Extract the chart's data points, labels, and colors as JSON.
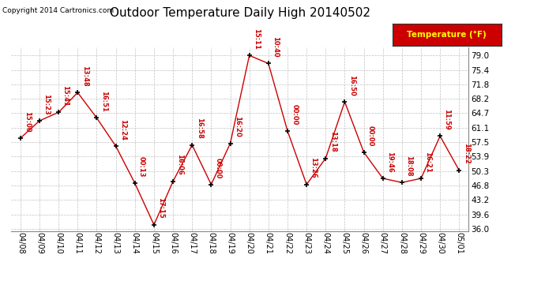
{
  "title": "Outdoor Temperature Daily High 20140502",
  "copyright": "Copyright 2014 Cartronics.com",
  "legend_label": "Temperature (°F)",
  "x_labels": [
    "04/08",
    "04/09",
    "04/10",
    "04/11",
    "04/12",
    "04/13",
    "04/14",
    "04/15",
    "04/16",
    "04/17",
    "04/18",
    "04/19",
    "04/20",
    "04/21",
    "04/22",
    "04/23",
    "04/24",
    "04/25",
    "04/26",
    "04/27",
    "04/28",
    "04/29",
    "04/30",
    "05/01"
  ],
  "y_values": [
    58.5,
    62.8,
    64.9,
    69.8,
    63.5,
    56.5,
    47.3,
    37.0,
    47.8,
    56.8,
    47.0,
    57.2,
    79.0,
    77.0,
    60.3,
    47.0,
    53.5,
    67.5,
    55.0,
    48.5,
    47.5,
    48.5,
    59.0,
    50.5
  ],
  "time_labels": [
    "15:00",
    "15:23",
    "15:41",
    "13:48",
    "16:51",
    "12:24",
    "00:13",
    "17:15",
    "16:06",
    "16:58",
    "00:00",
    "16:20",
    "15:11",
    "10:40",
    "00:00",
    "13:26",
    "13:18",
    "16:50",
    "00:00",
    "19:46",
    "18:08",
    "16:21",
    "11:59",
    "18:22"
  ],
  "y_min": 36.0,
  "y_max": 79.0,
  "y_ticks": [
    36.0,
    39.6,
    43.2,
    46.8,
    50.3,
    53.9,
    57.5,
    61.1,
    64.7,
    68.2,
    71.8,
    75.4,
    79.0
  ],
  "line_color": "#cc0000",
  "marker_color": "#000000",
  "bg_color": "#ffffff",
  "grid_color": "#c0c0c0",
  "title_fontsize": 11,
  "legend_bg": "#cc0000",
  "legend_text_color": "#ffff00"
}
